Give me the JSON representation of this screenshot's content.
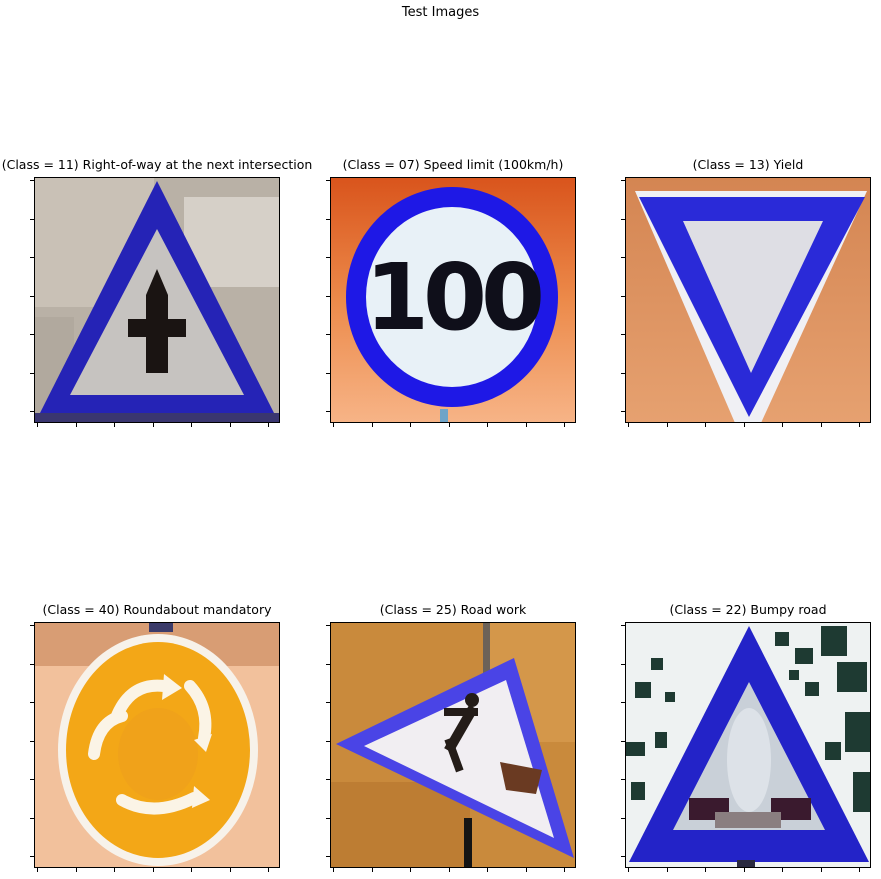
{
  "figure": {
    "suptitle": "Test Images"
  },
  "panels": [
    {
      "title": "(Class = 11) Right-of-way at the next intersection",
      "image": "right-of-way-at-next-intersection-sign"
    },
    {
      "title": "(Class = 07) Speed limit (100km/h)",
      "image": "speed-limit-100-sign",
      "sign_text": "100"
    },
    {
      "title": "(Class = 13) Yield",
      "image": "yield-sign"
    },
    {
      "title": "(Class = 40) Roundabout mandatory",
      "image": "roundabout-mandatory-sign"
    },
    {
      "title": "(Class = 25) Road work",
      "image": "road-work-sign"
    },
    {
      "title": "(Class = 22) Bumpy road",
      "image": "bumpy-road-sign"
    }
  ],
  "colors": {
    "sign_blue": "#2a2ad0",
    "sign_white": "#e6ecf2",
    "roundabout_yellow": "#f3a717"
  }
}
